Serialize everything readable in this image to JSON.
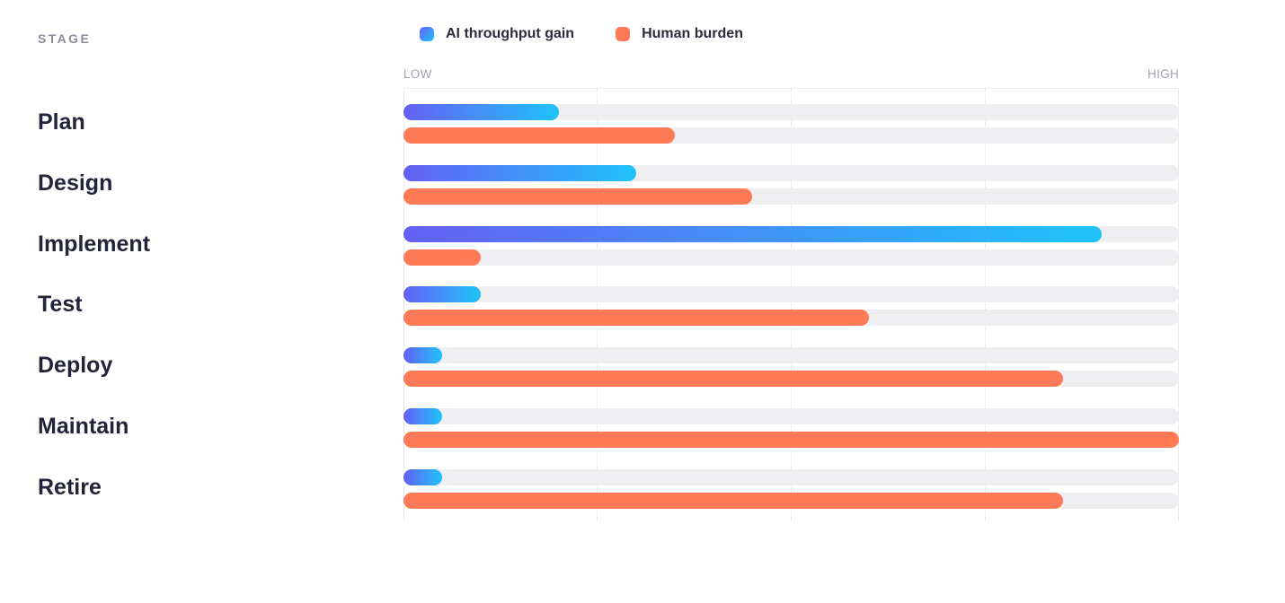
{
  "header": {
    "stage_label": "STAGE"
  },
  "legend": [
    {
      "label": "AI throughput gain",
      "color": "#3b8af5"
    },
    {
      "label": "Human burden",
      "color": "#ff7a55"
    }
  ],
  "axis": {
    "low_label": "LOW",
    "high_label": "HIGH"
  },
  "colors": {
    "ai_gradient_start": "#6560f6",
    "ai_gradient_end": "#1fc3fb",
    "human": "#ff7a55",
    "track": "#efeef1"
  },
  "chart_data": {
    "type": "bar",
    "orientation": "horizontal",
    "categories": [
      "Plan",
      "Design",
      "Implement",
      "Test",
      "Deploy",
      "Maintain",
      "Retire"
    ],
    "series": [
      {
        "name": "AI throughput gain",
        "values": [
          0.2,
          0.3,
          0.9,
          0.1,
          0.05,
          0.05,
          0.05
        ]
      },
      {
        "name": "Human burden",
        "values": [
          0.35,
          0.45,
          0.1,
          0.6,
          0.85,
          1.0,
          0.85
        ]
      }
    ],
    "xlim": [
      0,
      1
    ],
    "grid": true,
    "legend_position": "top"
  }
}
